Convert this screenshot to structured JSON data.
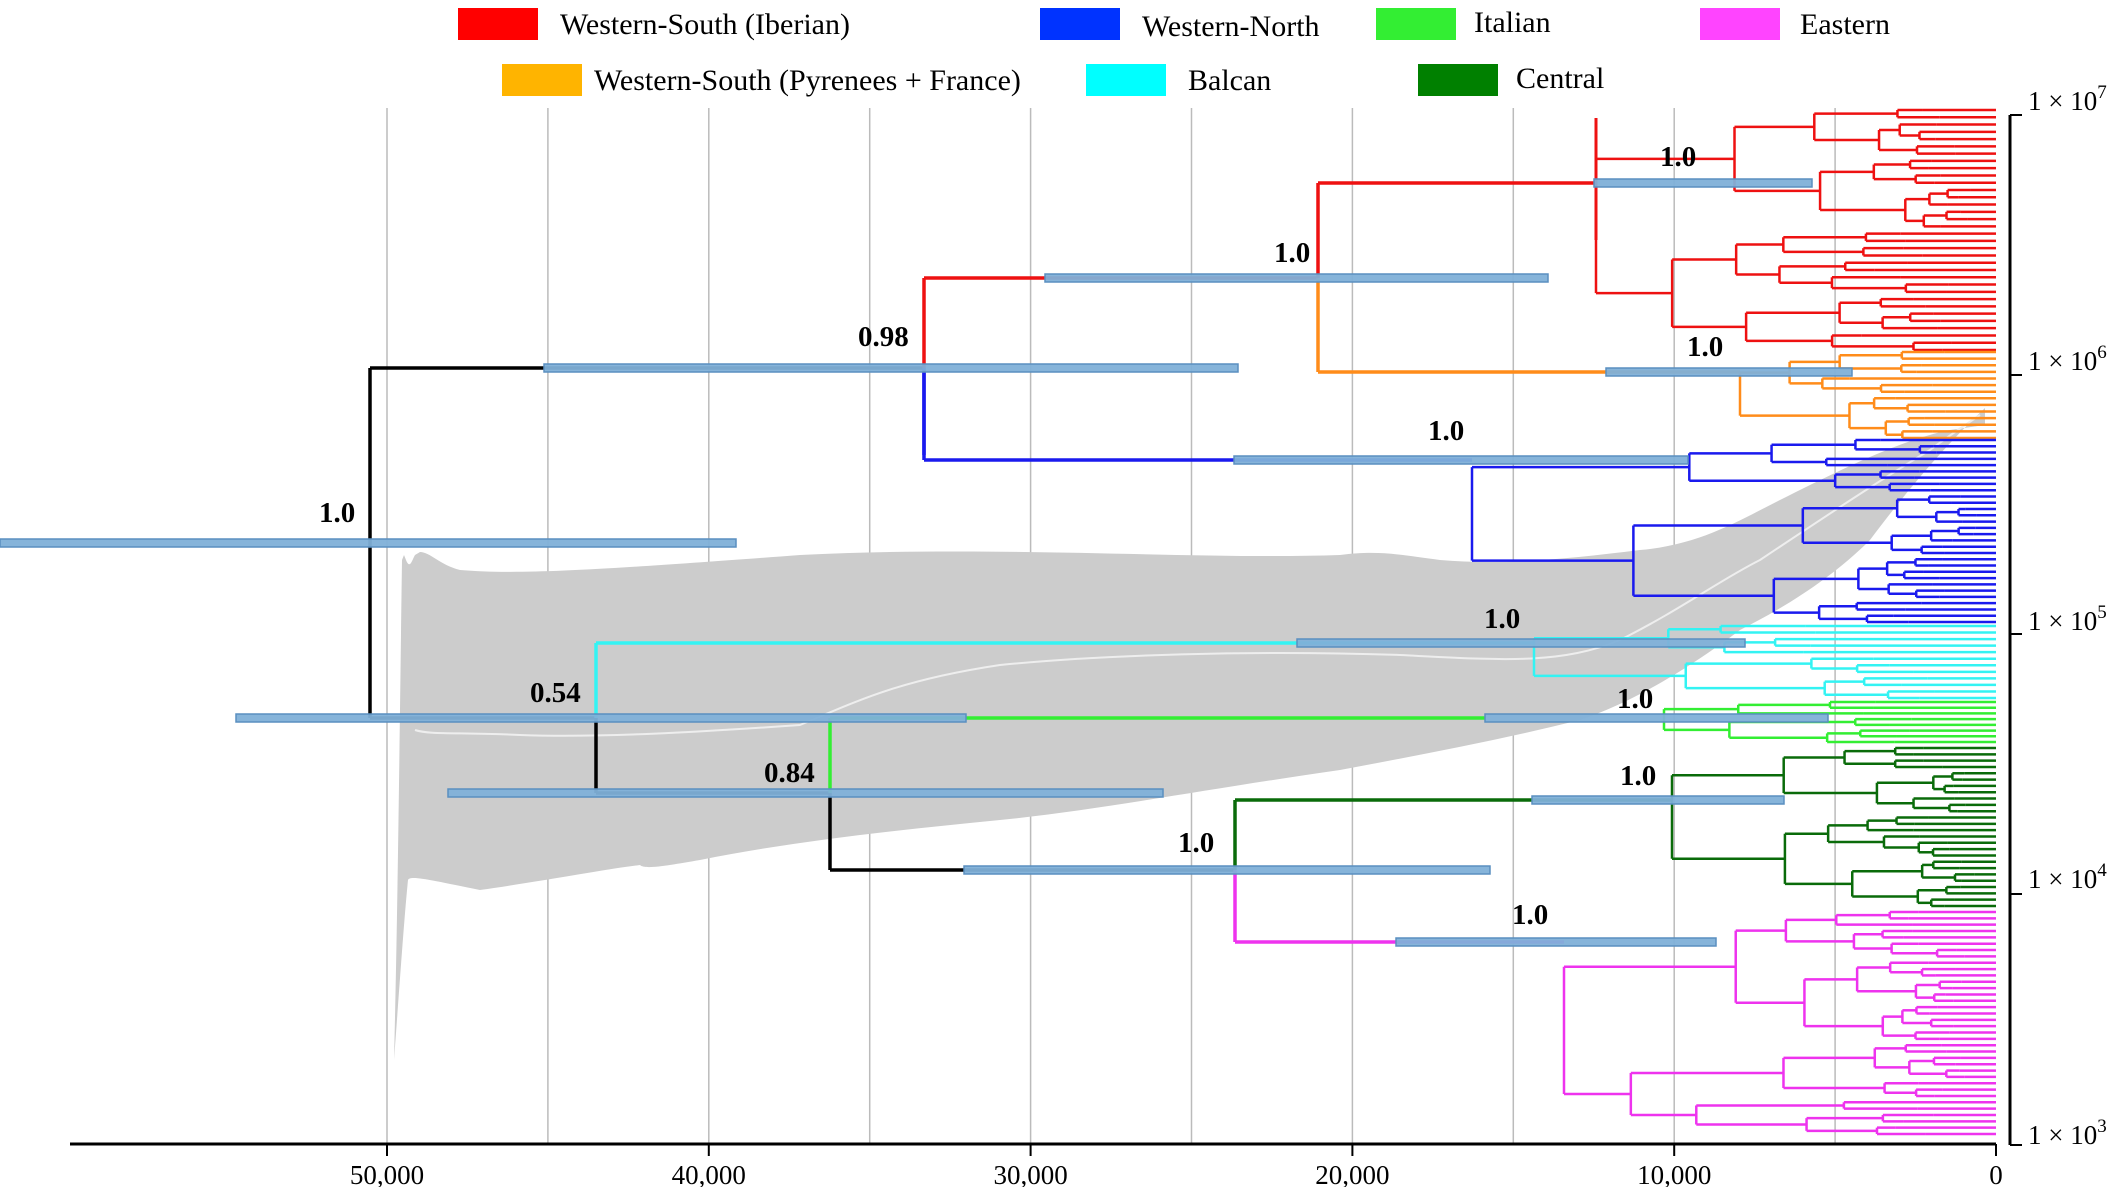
{
  "legend": [
    {
      "label": "Western-South (Iberian)",
      "color": "#ff0000"
    },
    {
      "label": "Western-North",
      "color": "#0033ff"
    },
    {
      "label": "Italian",
      "color": "#33ee33"
    },
    {
      "label": "Eastern",
      "color": "#ff44ff"
    },
    {
      "label": "Western-South (Pyrenees + France)",
      "color": "#ffb400"
    },
    {
      "label": "Balcan",
      "color": "#00ffff"
    },
    {
      "label": "Central",
      "color": "#008000"
    }
  ],
  "x_axis": {
    "ticks": [
      {
        "value": 50000,
        "label": "50,000"
      },
      {
        "value": 40000,
        "label": "40,000"
      },
      {
        "value": 30000,
        "label": "30,000"
      },
      {
        "value": 20000,
        "label": "20,000"
      },
      {
        "value": 10000,
        "label": "10,000"
      },
      {
        "value": 0,
        "label": "0"
      }
    ]
  },
  "y_axis": {
    "scale": "log",
    "ticks": [
      {
        "exp": "7",
        "prefix": "1 × 10"
      },
      {
        "exp": "6",
        "prefix": "1 × 10"
      },
      {
        "exp": "5",
        "prefix": "1 × 10"
      },
      {
        "exp": "4",
        "prefix": "1 × 10"
      },
      {
        "exp": "3",
        "prefix": "1 × 10"
      }
    ]
  },
  "support_values": [
    "1.0",
    "1.0",
    "0.98",
    "1.0",
    "1.0",
    "1.0",
    "0.54",
    "1.0",
    "1.0",
    "0.84",
    "1.0",
    "1.0",
    "1.0"
  ],
  "colors": {
    "iberian": "#ee1111",
    "pyrenees": "#ff8c1a",
    "western_north": "#1a1aee",
    "balcan": "#33f3f3",
    "italian": "#33ee33",
    "central": "#0a6b0a",
    "eastern": "#ee33ee",
    "backbone": "#000000",
    "hpd_bar": "#7fb0d8",
    "hpd_edge": "#5a8fc0",
    "skyline_band": "#cccccc",
    "skyline_median": "#eeeeee",
    "gridline": "#bbbbbb"
  }
}
